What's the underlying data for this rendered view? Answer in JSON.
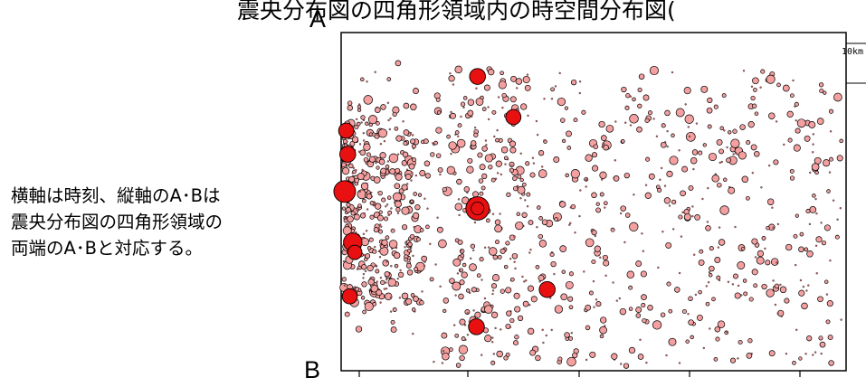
{
  "title": "震央分布図の四角形領域内の時空間分布図(",
  "end_labels": {
    "top": "A",
    "bottom": "B"
  },
  "caption": [
    "横軸は時刻、縦軸のA･Bは",
    "震央分布図の四角形領域の",
    "両端のA･Bと対応する。"
  ],
  "scale_label": "10km",
  "chart_data": {
    "type": "scatter",
    "title": "震央分布図の四角形領域内の時空間分布図(",
    "xlabel": "",
    "ylabel": "",
    "x_ticks": 5,
    "colors": {
      "small": "#f4a0a0",
      "large": "#e81010",
      "outline": "#000000",
      "axis": "#000000"
    },
    "large_events": [
      {
        "x": 0.007,
        "y": 0.47,
        "mag": 7.0
      },
      {
        "x": 0.023,
        "y": 0.62,
        "mag": 6.6
      },
      {
        "x": 0.013,
        "y": 0.36,
        "mag": 6.3
      },
      {
        "x": 0.027,
        "y": 0.65,
        "mag": 6.1
      },
      {
        "x": 0.01,
        "y": 0.29,
        "mag": 6.2
      },
      {
        "x": 0.017,
        "y": 0.78,
        "mag": 6.2
      },
      {
        "x": 0.27,
        "y": 0.52,
        "mag": 7.2
      },
      {
        "x": 0.27,
        "y": 0.13,
        "mag": 6.3
      },
      {
        "x": 0.341,
        "y": 0.25,
        "mag": 6.2
      },
      {
        "x": 0.408,
        "y": 0.76,
        "mag": 6.3
      },
      {
        "x": 0.268,
        "y": 0.87,
        "mag": 6.3
      }
    ]
  }
}
